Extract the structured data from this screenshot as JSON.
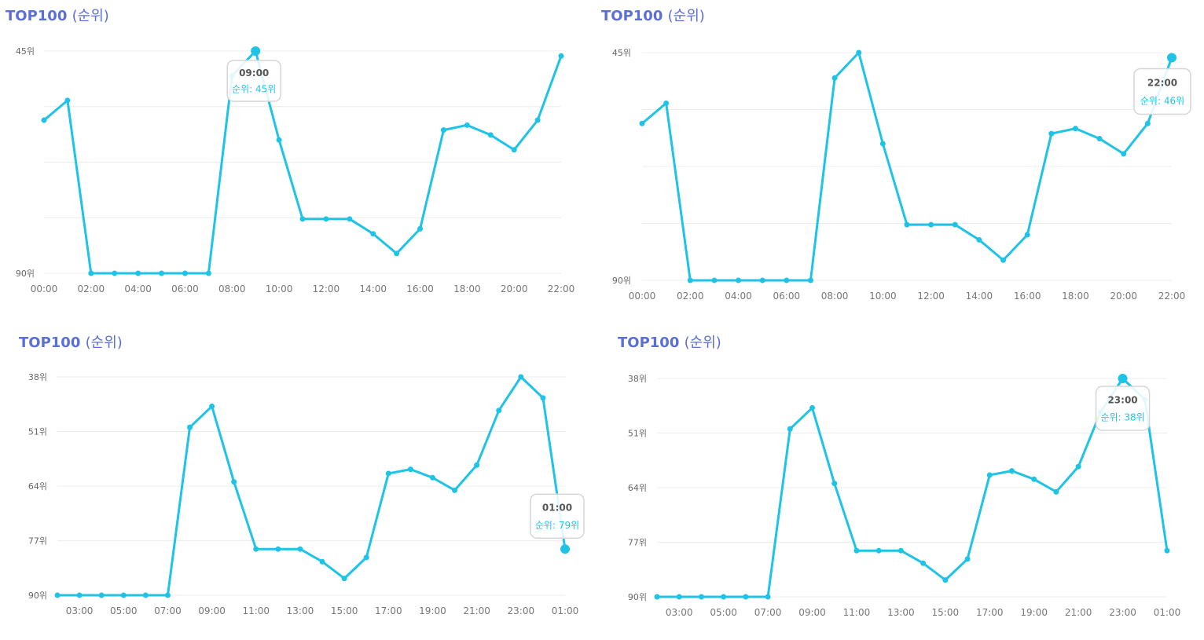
{
  "colors": {
    "line": "#1ec3e6",
    "title": "#5b6fd6"
  },
  "chart_data": [
    {
      "type": "line",
      "title": "TOP100",
      "title_sub": "(순위)",
      "y_ticks": [
        "45위",
        "90위"
      ],
      "y_tick_values": [
        45,
        90
      ],
      "ylim": [
        45,
        90
      ],
      "inverted_y": true,
      "x_tick_labels": [
        "00:00",
        "02:00",
        "04:00",
        "06:00",
        "08:00",
        "10:00",
        "12:00",
        "14:00",
        "16:00",
        "18:00",
        "20:00",
        "22:00"
      ],
      "x": [
        "00:00",
        "01:00",
        "02:00",
        "03:00",
        "04:00",
        "05:00",
        "06:00",
        "07:00",
        "08:00",
        "09:00",
        "10:00",
        "11:00",
        "12:00",
        "13:00",
        "14:00",
        "15:00",
        "16:00",
        "17:00",
        "18:00",
        "19:00",
        "20:00",
        "21:00",
        "22:00"
      ],
      "values": [
        59,
        55,
        90,
        90,
        90,
        90,
        90,
        90,
        50,
        45,
        63,
        79,
        79,
        79,
        82,
        86,
        81,
        61,
        60,
        62,
        65,
        59,
        46
      ],
      "tooltip": {
        "index": 9,
        "time": "09:00",
        "label": "순위: 45위"
      }
    },
    {
      "type": "line",
      "title": "TOP100",
      "title_sub": "(순위)",
      "y_ticks": [
        "45위",
        "90위"
      ],
      "y_tick_values": [
        45,
        90
      ],
      "ylim": [
        45,
        90
      ],
      "inverted_y": true,
      "x_tick_labels": [
        "00:00",
        "02:00",
        "04:00",
        "06:00",
        "08:00",
        "10:00",
        "12:00",
        "14:00",
        "16:00",
        "18:00",
        "20:00",
        "22:00"
      ],
      "x": [
        "00:00",
        "01:00",
        "02:00",
        "03:00",
        "04:00",
        "05:00",
        "06:00",
        "07:00",
        "08:00",
        "09:00",
        "10:00",
        "11:00",
        "12:00",
        "13:00",
        "14:00",
        "15:00",
        "16:00",
        "17:00",
        "18:00",
        "19:00",
        "20:00",
        "21:00",
        "22:00"
      ],
      "values": [
        59,
        55,
        90,
        90,
        90,
        90,
        90,
        90,
        50,
        45,
        63,
        79,
        79,
        79,
        82,
        86,
        81,
        61,
        60,
        62,
        65,
        59,
        46
      ],
      "tooltip": {
        "index": 22,
        "time": "22:00",
        "label": "순위: 46위"
      }
    },
    {
      "type": "line",
      "title": "TOP100",
      "title_sub": "(순위)",
      "y_ticks": [
        "38위",
        "51위",
        "64위",
        "77위",
        "90위"
      ],
      "y_tick_values": [
        38,
        51,
        64,
        77,
        90
      ],
      "ylim": [
        38,
        90
      ],
      "inverted_y": true,
      "x_tick_labels": [
        "03:00",
        "05:00",
        "07:00",
        "09:00",
        "11:00",
        "13:00",
        "15:00",
        "17:00",
        "19:00",
        "21:00",
        "23:00",
        "01:00"
      ],
      "x": [
        "02:00",
        "03:00",
        "04:00",
        "05:00",
        "06:00",
        "07:00",
        "08:00",
        "09:00",
        "10:00",
        "11:00",
        "12:00",
        "13:00",
        "14:00",
        "15:00",
        "16:00",
        "17:00",
        "18:00",
        "19:00",
        "20:00",
        "21:00",
        "22:00",
        "23:00",
        "00:00",
        "01:00"
      ],
      "values": [
        90,
        90,
        90,
        90,
        90,
        90,
        50,
        45,
        63,
        79,
        79,
        79,
        82,
        86,
        81,
        61,
        60,
        62,
        65,
        59,
        46,
        38,
        43,
        79
      ],
      "tooltip": {
        "index": 23,
        "time": "01:00",
        "label": "순위: 79위"
      }
    },
    {
      "type": "line",
      "title": "TOP100",
      "title_sub": "(순위)",
      "y_ticks": [
        "38위",
        "51위",
        "64위",
        "77위",
        "90위"
      ],
      "y_tick_values": [
        38,
        51,
        64,
        77,
        90
      ],
      "ylim": [
        38,
        90
      ],
      "inverted_y": true,
      "x_tick_labels": [
        "03:00",
        "05:00",
        "07:00",
        "09:00",
        "11:00",
        "13:00",
        "15:00",
        "17:00",
        "19:00",
        "21:00",
        "23:00",
        "01:00"
      ],
      "x": [
        "02:00",
        "03:00",
        "04:00",
        "05:00",
        "06:00",
        "07:00",
        "08:00",
        "09:00",
        "10:00",
        "11:00",
        "12:00",
        "13:00",
        "14:00",
        "15:00",
        "16:00",
        "17:00",
        "18:00",
        "19:00",
        "20:00",
        "21:00",
        "22:00",
        "23:00",
        "00:00",
        "01:00"
      ],
      "values": [
        90,
        90,
        90,
        90,
        90,
        90,
        50,
        45,
        63,
        79,
        79,
        79,
        82,
        86,
        81,
        61,
        60,
        62,
        65,
        59,
        46,
        38,
        43,
        79
      ],
      "tooltip": {
        "index": 21,
        "time": "23:00",
        "label": "순위: 38위"
      }
    }
  ]
}
